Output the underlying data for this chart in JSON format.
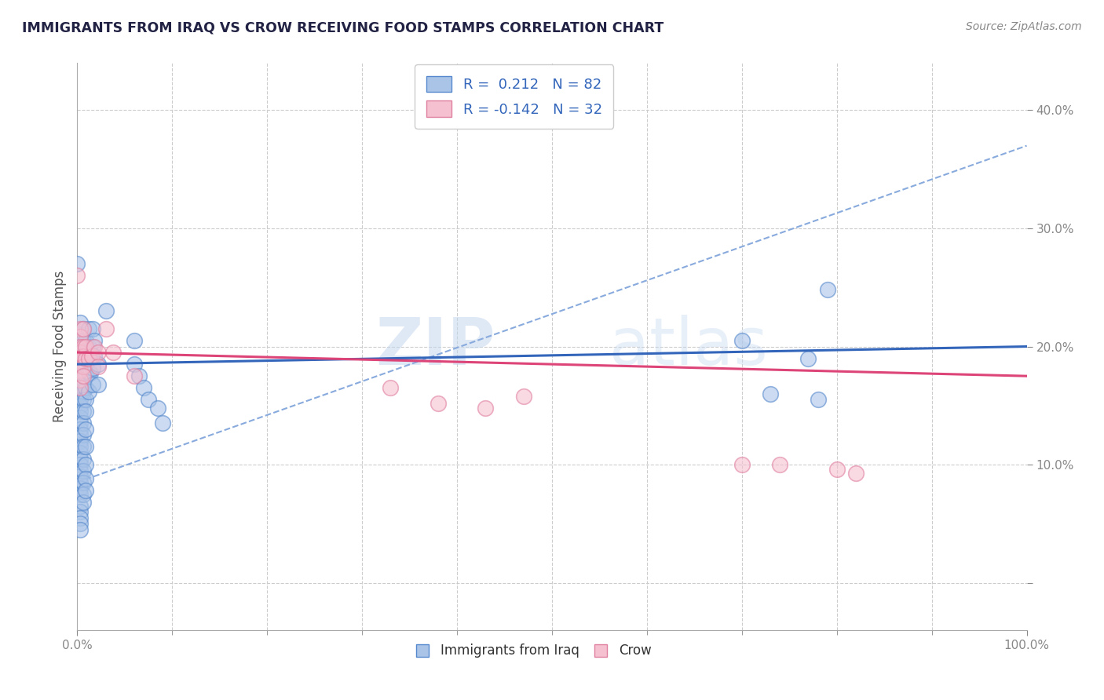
{
  "title": "IMMIGRANTS FROM IRAQ VS CROW RECEIVING FOOD STAMPS CORRELATION CHART",
  "source": "Source: ZipAtlas.com",
  "ylabel": "Receiving Food Stamps",
  "xlim": [
    0.0,
    1.0
  ],
  "ylim": [
    -0.04,
    0.44
  ],
  "xticks_major": [
    0.0,
    1.0
  ],
  "xtick_major_labels": [
    "0.0%",
    "100.0%"
  ],
  "xticks_minor": [
    0.1,
    0.2,
    0.3,
    0.4,
    0.5,
    0.6,
    0.7,
    0.8,
    0.9
  ],
  "yticks": [
    0.0,
    0.1,
    0.2,
    0.3,
    0.4
  ],
  "ytick_labels": [
    "",
    "10.0%",
    "20.0%",
    "30.0%",
    "40.0%"
  ],
  "background_color": "#ffffff",
  "grid_color": "#cccccc",
  "watermark_zip": "ZIP",
  "watermark_atlas": "atlas",
  "iraq_color": "#aac4e8",
  "iraq_edge_color": "#5588cc",
  "crow_color": "#f5c0d0",
  "crow_edge_color": "#e080a0",
  "iraq_line_color": "#3366bb",
  "crow_line_color": "#dd4477",
  "dashed_line_color": "#88aadd",
  "ytick_label_color": "#4488cc",
  "xtick_label_color": "#333333",
  "title_color": "#222244",
  "source_color": "#888888",
  "iraq_scatter": [
    [
      0.0,
      0.27
    ],
    [
      0.003,
      0.22
    ],
    [
      0.003,
      0.21
    ],
    [
      0.003,
      0.2
    ],
    [
      0.003,
      0.19
    ],
    [
      0.003,
      0.185
    ],
    [
      0.003,
      0.18
    ],
    [
      0.003,
      0.175
    ],
    [
      0.003,
      0.17
    ],
    [
      0.003,
      0.165
    ],
    [
      0.003,
      0.16
    ],
    [
      0.003,
      0.155
    ],
    [
      0.003,
      0.15
    ],
    [
      0.003,
      0.145
    ],
    [
      0.003,
      0.14
    ],
    [
      0.003,
      0.135
    ],
    [
      0.003,
      0.13
    ],
    [
      0.003,
      0.125
    ],
    [
      0.003,
      0.12
    ],
    [
      0.003,
      0.115
    ],
    [
      0.003,
      0.11
    ],
    [
      0.003,
      0.105
    ],
    [
      0.003,
      0.1
    ],
    [
      0.003,
      0.095
    ],
    [
      0.003,
      0.09
    ],
    [
      0.003,
      0.085
    ],
    [
      0.003,
      0.08
    ],
    [
      0.003,
      0.075
    ],
    [
      0.003,
      0.065
    ],
    [
      0.003,
      0.06
    ],
    [
      0.003,
      0.055
    ],
    [
      0.003,
      0.05
    ],
    [
      0.003,
      0.045
    ],
    [
      0.006,
      0.215
    ],
    [
      0.006,
      0.205
    ],
    [
      0.006,
      0.195
    ],
    [
      0.006,
      0.188
    ],
    [
      0.006,
      0.18
    ],
    [
      0.006,
      0.172
    ],
    [
      0.006,
      0.162
    ],
    [
      0.006,
      0.155
    ],
    [
      0.006,
      0.145
    ],
    [
      0.006,
      0.135
    ],
    [
      0.006,
      0.125
    ],
    [
      0.006,
      0.115
    ],
    [
      0.006,
      0.105
    ],
    [
      0.006,
      0.095
    ],
    [
      0.006,
      0.085
    ],
    [
      0.006,
      0.075
    ],
    [
      0.006,
      0.068
    ],
    [
      0.009,
      0.205
    ],
    [
      0.009,
      0.195
    ],
    [
      0.009,
      0.185
    ],
    [
      0.009,
      0.175
    ],
    [
      0.009,
      0.165
    ],
    [
      0.009,
      0.155
    ],
    [
      0.009,
      0.145
    ],
    [
      0.009,
      0.13
    ],
    [
      0.009,
      0.115
    ],
    [
      0.009,
      0.1
    ],
    [
      0.009,
      0.088
    ],
    [
      0.009,
      0.078
    ],
    [
      0.012,
      0.215
    ],
    [
      0.012,
      0.2
    ],
    [
      0.012,
      0.19
    ],
    [
      0.012,
      0.178
    ],
    [
      0.012,
      0.162
    ],
    [
      0.014,
      0.195
    ],
    [
      0.014,
      0.178
    ],
    [
      0.016,
      0.215
    ],
    [
      0.016,
      0.2
    ],
    [
      0.016,
      0.182
    ],
    [
      0.016,
      0.168
    ],
    [
      0.018,
      0.205
    ],
    [
      0.018,
      0.192
    ],
    [
      0.022,
      0.185
    ],
    [
      0.022,
      0.168
    ],
    [
      0.03,
      0.23
    ],
    [
      0.06,
      0.205
    ],
    [
      0.06,
      0.185
    ],
    [
      0.065,
      0.175
    ],
    [
      0.07,
      0.165
    ],
    [
      0.075,
      0.155
    ],
    [
      0.085,
      0.148
    ],
    [
      0.09,
      0.135
    ],
    [
      0.7,
      0.205
    ],
    [
      0.73,
      0.16
    ],
    [
      0.77,
      0.19
    ],
    [
      0.78,
      0.155
    ],
    [
      0.79,
      0.248
    ]
  ],
  "crow_scatter": [
    [
      0.0,
      0.26
    ],
    [
      0.003,
      0.215
    ],
    [
      0.003,
      0.208
    ],
    [
      0.003,
      0.2
    ],
    [
      0.003,
      0.195
    ],
    [
      0.003,
      0.188
    ],
    [
      0.003,
      0.18
    ],
    [
      0.003,
      0.172
    ],
    [
      0.003,
      0.165
    ],
    [
      0.006,
      0.215
    ],
    [
      0.006,
      0.2
    ],
    [
      0.006,
      0.192
    ],
    [
      0.006,
      0.183
    ],
    [
      0.006,
      0.175
    ],
    [
      0.009,
      0.2
    ],
    [
      0.009,
      0.19
    ],
    [
      0.012,
      0.19
    ],
    [
      0.015,
      0.192
    ],
    [
      0.018,
      0.2
    ],
    [
      0.022,
      0.195
    ],
    [
      0.022,
      0.183
    ],
    [
      0.03,
      0.215
    ],
    [
      0.038,
      0.195
    ],
    [
      0.06,
      0.175
    ],
    [
      0.33,
      0.165
    ],
    [
      0.38,
      0.152
    ],
    [
      0.43,
      0.148
    ],
    [
      0.47,
      0.158
    ],
    [
      0.7,
      0.1
    ],
    [
      0.74,
      0.1
    ],
    [
      0.8,
      0.096
    ],
    [
      0.82,
      0.093
    ]
  ],
  "iraq_trendline": [
    0.0,
    0.185,
    1.0,
    0.2
  ],
  "crow_trendline": [
    0.0,
    0.195,
    1.0,
    0.175
  ],
  "dashed_trendline": [
    0.0,
    0.085,
    1.0,
    0.37
  ]
}
